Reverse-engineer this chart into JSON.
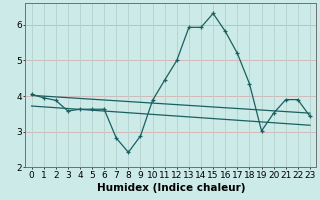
{
  "xlabel": "Humidex (Indice chaleur)",
  "ylabel": "",
  "background_color": "#cceae8",
  "grid_color_h": "#d4b8b8",
  "grid_color_v": "#b8d4d0",
  "line_color": "#1a6060",
  "xlim": [
    -0.5,
    23.5
  ],
  "ylim": [
    2.0,
    6.6
  ],
  "yticks": [
    2,
    3,
    4,
    5,
    6
  ],
  "xticks": [
    0,
    1,
    2,
    3,
    4,
    5,
    6,
    7,
    8,
    9,
    10,
    11,
    12,
    13,
    14,
    15,
    16,
    17,
    18,
    19,
    20,
    21,
    22,
    23
  ],
  "series1_x": [
    0,
    1,
    2,
    3,
    4,
    5,
    6,
    7,
    8,
    9,
    10,
    11,
    12,
    13,
    14,
    15,
    16,
    17,
    18,
    19,
    20,
    21,
    22,
    23
  ],
  "series1_y": [
    4.05,
    3.95,
    3.88,
    3.58,
    3.63,
    3.63,
    3.63,
    2.82,
    2.42,
    2.88,
    3.88,
    4.45,
    5.0,
    5.93,
    5.93,
    6.32,
    5.82,
    5.2,
    4.35,
    3.02,
    3.52,
    3.9,
    3.9,
    3.43
  ],
  "series2_x": [
    0,
    23
  ],
  "series2_y": [
    4.02,
    3.52
  ],
  "series3_x": [
    0,
    23
  ],
  "series3_y": [
    3.72,
    3.18
  ],
  "font_size_label": 7.5,
  "font_size_tick": 6.5,
  "marker_size": 3.0,
  "line_width": 0.9
}
